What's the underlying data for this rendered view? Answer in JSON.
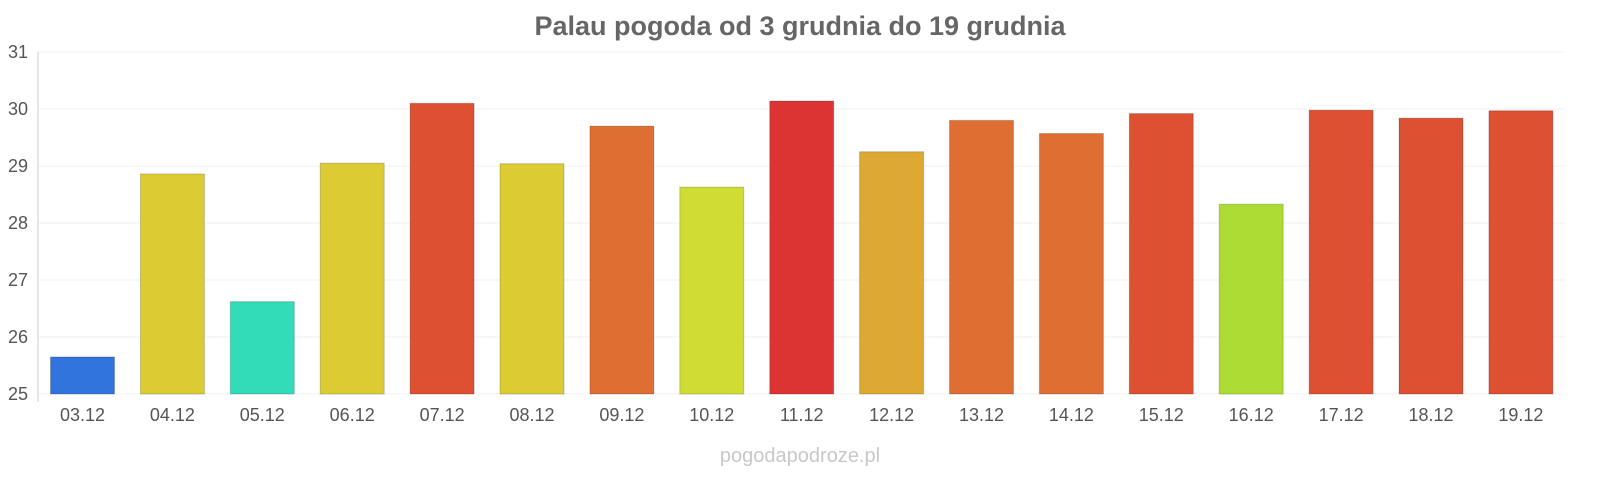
{
  "watermark": "pogodapodroze.pl",
  "chart_data": {
    "type": "bar",
    "title": "Palau pogoda od 3 grudnia do 19 grudnia",
    "xlabel": "",
    "ylabel": "",
    "ylim": [
      25,
      31
    ],
    "yticks": [
      "25",
      "26",
      "27",
      "28",
      "29",
      "30",
      "31"
    ],
    "grid": true,
    "categories": [
      "03.12",
      "04.12",
      "05.12",
      "06.12",
      "07.12",
      "08.12",
      "09.12",
      "10.12",
      "11.12",
      "12.12",
      "13.12",
      "14.12",
      "15.12",
      "16.12",
      "17.12",
      "18.12",
      "19.12"
    ],
    "values": [
      25.65,
      28.86,
      26.62,
      29.05,
      30.1,
      29.04,
      29.7,
      28.63,
      30.14,
      29.25,
      29.8,
      29.57,
      29.92,
      28.33,
      29.98,
      29.84,
      29.97
    ],
    "colors": [
      "#3174dd",
      "#dccb32",
      "#33dcb9",
      "#dccb32",
      "#dd5032",
      "#dccb32",
      "#de6e32",
      "#cedc33",
      "#db3433",
      "#dda933",
      "#de6e32",
      "#de6e32",
      "#dd5032",
      "#acdc33",
      "#dd5032",
      "#dd5032",
      "#dd5032"
    ]
  }
}
